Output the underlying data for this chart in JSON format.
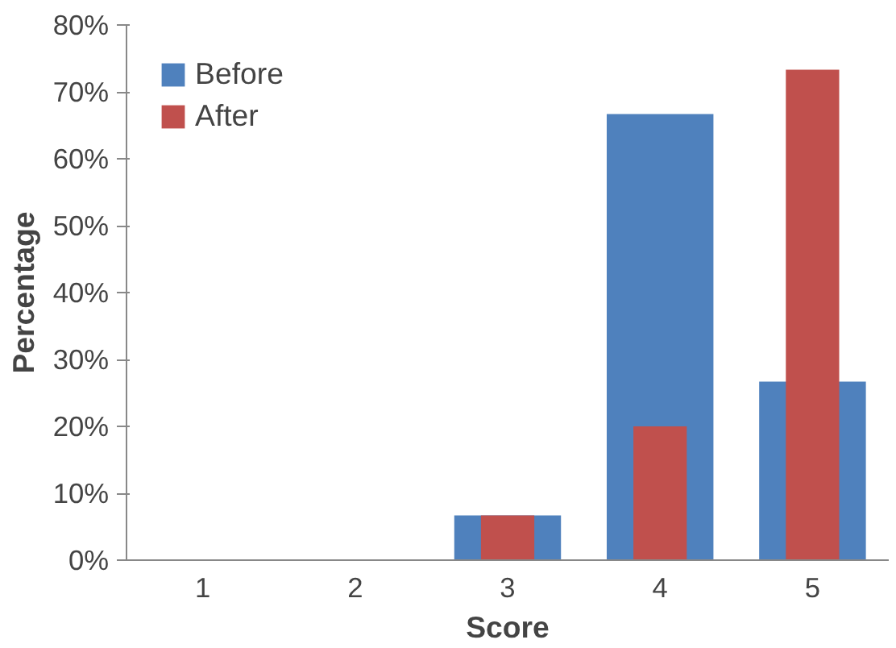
{
  "chart_data": {
    "type": "bar",
    "xlabel": "Score",
    "ylabel": "Percentage",
    "categories": [
      "1",
      "2",
      "3",
      "4",
      "5"
    ],
    "series": [
      {
        "name": "Before",
        "color": "#4f81bd",
        "values": [
          0,
          0,
          6.7,
          66.7,
          26.7
        ]
      },
      {
        "name": "After",
        "color": "#c0504d",
        "values": [
          0,
          0,
          6.7,
          20,
          73.3
        ]
      }
    ],
    "ylim": [
      0,
      80
    ],
    "yticks": [
      {
        "value": 0,
        "label": "0%"
      },
      {
        "value": 10,
        "label": "10%"
      },
      {
        "value": 20,
        "label": "20%"
      },
      {
        "value": 30,
        "label": "30%"
      },
      {
        "value": 40,
        "label": "40%"
      },
      {
        "value": 50,
        "label": "50%"
      },
      {
        "value": 60,
        "label": "60%"
      },
      {
        "value": 70,
        "label": "70%"
      },
      {
        "value": 80,
        "label": "80%"
      }
    ],
    "grid": false,
    "legend": "top left"
  }
}
